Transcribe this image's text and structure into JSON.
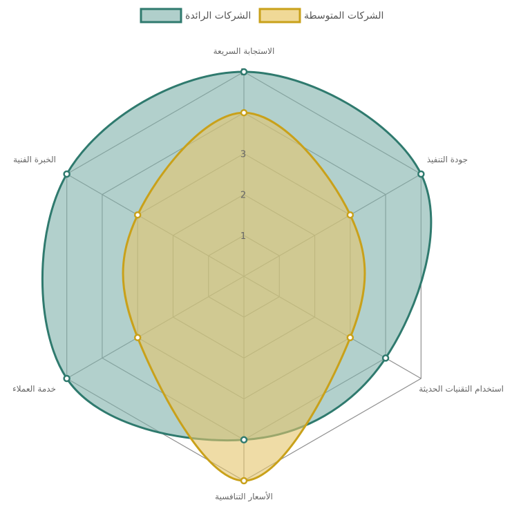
{
  "chart_data": {
    "type": "radar",
    "axes": [
      "الاستجابة السريعة",
      "جودة التنفيذ",
      "استخدام التقنيات الحديثة",
      "الأسعار التنافسية",
      "خدمة العملاء",
      "الخبرة الفنية"
    ],
    "r_range": [
      0,
      5
    ],
    "ticks": [
      "1",
      "2",
      "3",
      "4",
      "5"
    ],
    "series": [
      {
        "name": "الشركات الرائدة",
        "values": [
          5,
          5,
          4,
          4,
          5,
          5
        ],
        "color": "#2f7a6e",
        "fill": "#7fb0aa"
      },
      {
        "name": "الشركات المتوسطة",
        "values": [
          4,
          3,
          3,
          5,
          3,
          3
        ],
        "color": "#c9a11a",
        "fill": "#e4c46a"
      }
    ],
    "legend_position": "top",
    "grid": true
  }
}
